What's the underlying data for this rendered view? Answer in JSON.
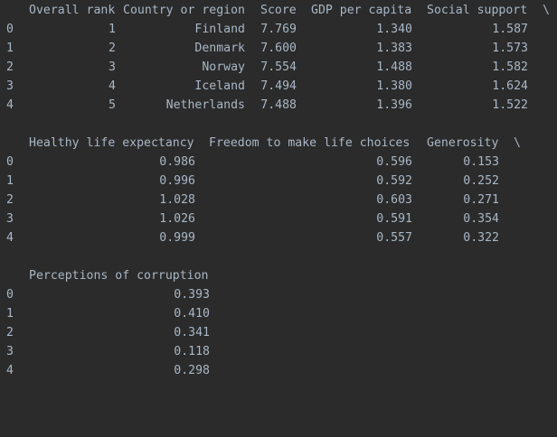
{
  "blocks": [
    {
      "header": [
        "Overall rank",
        "Country or region",
        "Score",
        "GDP per capita",
        "Social support"
      ],
      "continuation": "\\",
      "rows": [
        {
          "index": "0",
          "cells": [
            "1",
            "Finland",
            "7.769",
            "1.340",
            "1.587"
          ]
        },
        {
          "index": "1",
          "cells": [
            "2",
            "Denmark",
            "7.600",
            "1.383",
            "1.573"
          ]
        },
        {
          "index": "2",
          "cells": [
            "3",
            "Norway",
            "7.554",
            "1.488",
            "1.582"
          ]
        },
        {
          "index": "3",
          "cells": [
            "4",
            "Iceland",
            "7.494",
            "1.380",
            "1.624"
          ]
        },
        {
          "index": "4",
          "cells": [
            "5",
            "Netherlands",
            "7.488",
            "1.396",
            "1.522"
          ]
        }
      ]
    },
    {
      "header": [
        "Healthy life expectancy",
        "Freedom to make life choices",
        "Generosity"
      ],
      "continuation": "\\",
      "rows": [
        {
          "index": "0",
          "cells": [
            "0.986",
            "0.596",
            "0.153"
          ]
        },
        {
          "index": "1",
          "cells": [
            "0.996",
            "0.592",
            "0.252"
          ]
        },
        {
          "index": "2",
          "cells": [
            "1.028",
            "0.603",
            "0.271"
          ]
        },
        {
          "index": "3",
          "cells": [
            "1.026",
            "0.591",
            "0.354"
          ]
        },
        {
          "index": "4",
          "cells": [
            "0.999",
            "0.557",
            "0.322"
          ]
        }
      ]
    },
    {
      "header": [
        "Perceptions of corruption"
      ],
      "continuation": "",
      "rows": [
        {
          "index": "0",
          "cells": [
            "0.393"
          ]
        },
        {
          "index": "1",
          "cells": [
            "0.410"
          ]
        },
        {
          "index": "2",
          "cells": [
            "0.341"
          ]
        },
        {
          "index": "3",
          "cells": [
            "0.118"
          ]
        },
        {
          "index": "4",
          "cells": [
            "0.298"
          ]
        }
      ]
    }
  ],
  "colors": {
    "background": "#2b2b2b",
    "text": "#a9b7c6"
  }
}
